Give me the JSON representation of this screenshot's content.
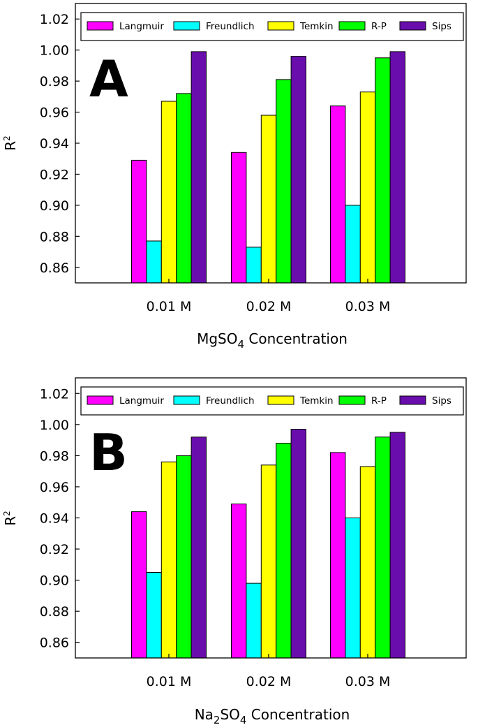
{
  "chart_data": [
    {
      "type": "bar",
      "panel_label": "A",
      "categories": [
        "0.01 M",
        "0.02 M",
        "0.03 M"
      ],
      "series": [
        {
          "name": "Langmuir",
          "color": "#ff00ff",
          "values": [
            0.929,
            0.934,
            0.964
          ]
        },
        {
          "name": "Freundlich",
          "color": "#00ffff",
          "values": [
            0.877,
            0.873,
            0.9
          ]
        },
        {
          "name": "Temkin",
          "color": "#ffff00",
          "values": [
            0.967,
            0.958,
            0.973
          ]
        },
        {
          "name": "R-P",
          "color": "#00ff00",
          "values": [
            0.972,
            0.981,
            0.995
          ]
        },
        {
          "name": "Sips",
          "color": "#6a0dad",
          "values": [
            0.999,
            0.996,
            0.999
          ]
        }
      ],
      "ylabel": "R",
      "ylabel_sup": "2",
      "xlabel": "MgSO",
      "xlabel_sub": "4",
      "xlabel_tail": " Concentration",
      "ylim": [
        0.85,
        1.03
      ],
      "yticks": [
        "0.86",
        "0.88",
        "0.90",
        "0.92",
        "0.94",
        "0.96",
        "0.98",
        "1.00",
        "1.02"
      ],
      "legend_position": "top"
    },
    {
      "type": "bar",
      "panel_label": "B",
      "categories": [
        "0.01 M",
        "0.02 M",
        "0.03 M"
      ],
      "series": [
        {
          "name": "Langmuir",
          "color": "#ff00ff",
          "values": [
            0.944,
            0.949,
            0.982
          ]
        },
        {
          "name": "Freundlich",
          "color": "#00ffff",
          "values": [
            0.905,
            0.898,
            0.94
          ]
        },
        {
          "name": "Temkin",
          "color": "#ffff00",
          "values": [
            0.976,
            0.974,
            0.973
          ]
        },
        {
          "name": "R-P",
          "color": "#00ff00",
          "values": [
            0.98,
            0.988,
            0.992
          ]
        },
        {
          "name": "Sips",
          "color": "#6a0dad",
          "values": [
            0.992,
            0.997,
            0.995
          ]
        }
      ],
      "ylabel": "R",
      "ylabel_sup": "2",
      "xlabel": "Na",
      "xlabel_sub": "2",
      "xlabel_tail": "SO",
      "xlabel_sub2": "4",
      "xlabel_tail2": " Concentration",
      "ylim": [
        0.85,
        1.03
      ],
      "yticks": [
        "0.86",
        "0.88",
        "0.90",
        "0.92",
        "0.94",
        "0.96",
        "0.98",
        "1.00",
        "1.02"
      ],
      "legend_position": "top"
    }
  ]
}
